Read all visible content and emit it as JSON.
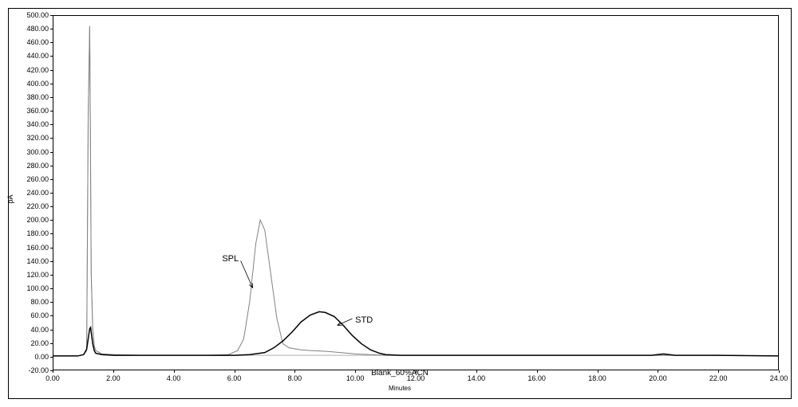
{
  "chart": {
    "type": "line",
    "xlim": [
      0,
      24
    ],
    "ylim": [
      -20,
      500
    ],
    "xtick_step": 2.0,
    "ytick_step": 20,
    "x_axis_label": "Minutes",
    "y_axis_label": "pA",
    "background_color": "#ffffff",
    "border_color": "#000000",
    "tick_fontsize": 9,
    "label_fontsize": 9,
    "bottom_text": "Blank_60%ACN",
    "series": [
      {
        "name": "Blank",
        "color": "#b0b0b0",
        "width": 1,
        "data": [
          [
            0.0,
            0
          ],
          [
            0.8,
            0
          ],
          [
            1.0,
            2
          ],
          [
            1.1,
            8
          ],
          [
            1.15,
            350
          ],
          [
            1.2,
            485
          ],
          [
            1.22,
            350
          ],
          [
            1.25,
            120
          ],
          [
            1.3,
            40
          ],
          [
            1.35,
            15
          ],
          [
            1.4,
            8
          ],
          [
            1.6,
            3
          ],
          [
            2.0,
            2
          ],
          [
            3.0,
            1
          ],
          [
            4.0,
            1
          ],
          [
            5.0,
            1
          ],
          [
            6.0,
            1
          ],
          [
            7.0,
            1
          ],
          [
            8.0,
            1
          ],
          [
            10.0,
            1
          ],
          [
            12.0,
            1
          ],
          [
            14.0,
            1
          ],
          [
            16.0,
            1
          ],
          [
            18.0,
            1
          ],
          [
            20.0,
            1
          ],
          [
            22.0,
            1
          ],
          [
            24.0,
            0
          ]
        ]
      },
      {
        "name": "SPL",
        "color": "#808080",
        "width": 1,
        "label": "SPL",
        "label_pos": [
          5.6,
          150
        ],
        "arrow_from": [
          6.2,
          140
        ],
        "arrow_to": [
          6.6,
          100
        ],
        "data": [
          [
            0.0,
            0
          ],
          [
            0.8,
            0
          ],
          [
            1.0,
            2
          ],
          [
            1.1,
            8
          ],
          [
            1.15,
            350
          ],
          [
            1.2,
            485
          ],
          [
            1.22,
            350
          ],
          [
            1.25,
            120
          ],
          [
            1.3,
            40
          ],
          [
            1.35,
            15
          ],
          [
            1.4,
            8
          ],
          [
            1.6,
            3
          ],
          [
            2.0,
            2
          ],
          [
            3.0,
            1
          ],
          [
            4.0,
            1
          ],
          [
            5.0,
            1
          ],
          [
            5.8,
            2
          ],
          [
            6.1,
            8
          ],
          [
            6.3,
            25
          ],
          [
            6.5,
            80
          ],
          [
            6.7,
            165
          ],
          [
            6.85,
            200
          ],
          [
            7.0,
            185
          ],
          [
            7.2,
            120
          ],
          [
            7.4,
            55
          ],
          [
            7.6,
            18
          ],
          [
            7.8,
            12
          ],
          [
            8.2,
            9
          ],
          [
            8.5,
            8
          ],
          [
            9.0,
            7
          ],
          [
            9.5,
            5
          ],
          [
            10.0,
            3
          ],
          [
            10.5,
            2
          ],
          [
            11.0,
            1
          ],
          [
            12.0,
            1
          ],
          [
            14.0,
            1
          ],
          [
            16.0,
            1
          ],
          [
            18.0,
            1
          ],
          [
            20.0,
            1
          ],
          [
            22.0,
            1
          ],
          [
            24.0,
            0
          ]
        ]
      },
      {
        "name": "STD",
        "color": "#000000",
        "width": 1.5,
        "label": "STD",
        "label_pos": [
          10.0,
          60
        ],
        "arrow_from": [
          9.9,
          55
        ],
        "arrow_to": [
          9.4,
          45
        ],
        "data": [
          [
            0.0,
            0
          ],
          [
            0.8,
            0
          ],
          [
            1.0,
            2
          ],
          [
            1.1,
            10
          ],
          [
            1.15,
            25
          ],
          [
            1.2,
            40
          ],
          [
            1.23,
            42
          ],
          [
            1.25,
            35
          ],
          [
            1.3,
            18
          ],
          [
            1.35,
            8
          ],
          [
            1.4,
            4
          ],
          [
            1.6,
            2
          ],
          [
            2.0,
            1
          ],
          [
            3.0,
            1
          ],
          [
            4.0,
            1
          ],
          [
            5.0,
            1
          ],
          [
            6.0,
            1
          ],
          [
            6.5,
            2
          ],
          [
            7.0,
            5
          ],
          [
            7.3,
            12
          ],
          [
            7.6,
            22
          ],
          [
            7.9,
            35
          ],
          [
            8.2,
            50
          ],
          [
            8.5,
            60
          ],
          [
            8.8,
            65
          ],
          [
            9.0,
            64
          ],
          [
            9.3,
            58
          ],
          [
            9.6,
            45
          ],
          [
            9.9,
            30
          ],
          [
            10.2,
            18
          ],
          [
            10.5,
            9
          ],
          [
            10.8,
            4
          ],
          [
            11.0,
            2
          ],
          [
            11.5,
            1
          ],
          [
            12.0,
            1
          ],
          [
            14.0,
            1
          ],
          [
            16.0,
            1
          ],
          [
            18.0,
            1
          ],
          [
            19.8,
            1
          ],
          [
            20.0,
            2
          ],
          [
            20.2,
            3
          ],
          [
            20.4,
            2
          ],
          [
            20.6,
            1
          ],
          [
            22.0,
            1
          ],
          [
            24.0,
            0
          ]
        ]
      }
    ]
  }
}
